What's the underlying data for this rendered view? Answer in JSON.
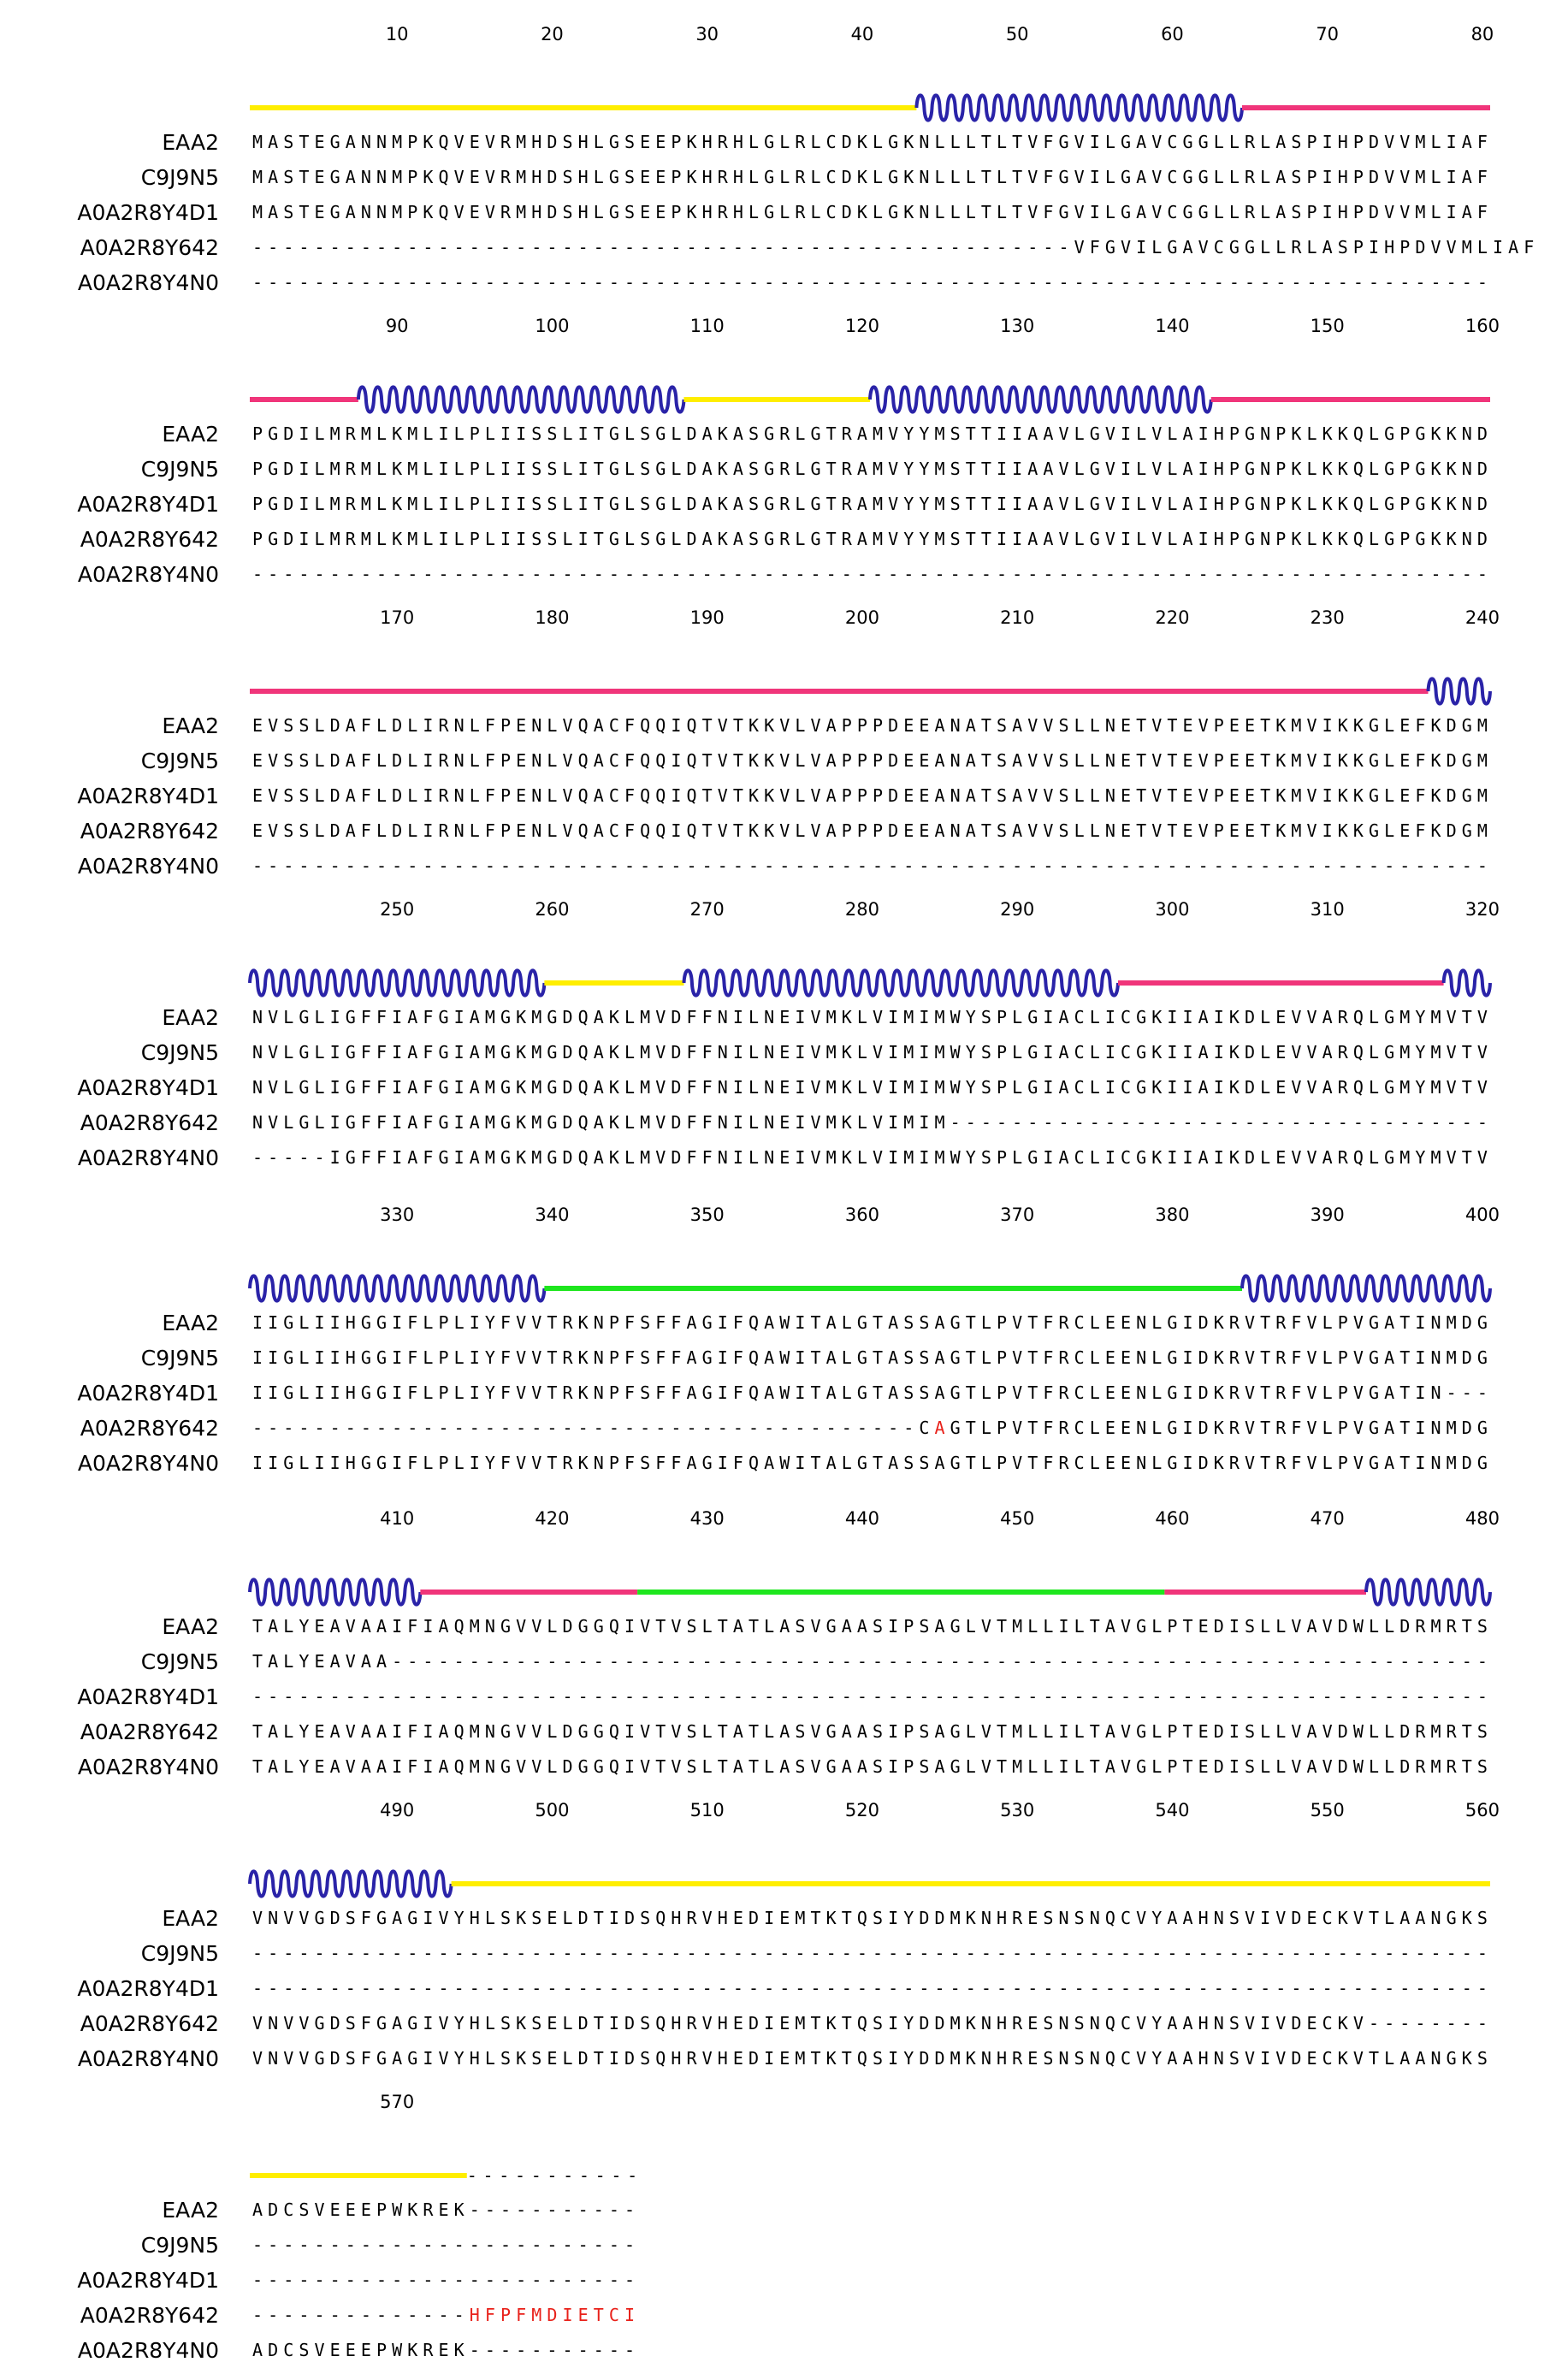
{
  "alignment": {
    "names": [
      "EAA2",
      "C9J9N5",
      "A0A2R8Y4D1",
      "A0A2R8Y642",
      "A0A2R8Y4N0"
    ],
    "colors": {
      "coil": "#ffee00",
      "strand": "#f0357a",
      "helix": "#2a23a8",
      "loop": "#1ee61e",
      "highlight": "#e8211a"
    },
    "blocks": [
      {
        "start": 1,
        "ticks": [
          "10",
          "20",
          "30",
          "40",
          "50",
          "60",
          "70",
          "80"
        ],
        "rows": [
          "MASTEGANNMPKQVEVRMHDSHLGSEEPKHRHLGLRLCDKLGKNLLLTLTVFGVILGAVCGGLLRLASPIHPDVVMLIAF",
          "MASTEGANNMPKQVEVRMHDSHLGSEEPKHRHLGLRLCDKLGKNLLLTLTVFGVILGAVCGGLLRLASPIHPDVVMLIAF",
          "MASTEGANNMPKQVEVRMHDSHLGSEEPKHRHLGLRLCDKLGKNLLLTLTVFGVILGAVCGGLLRLASPIHPDVVMLIAF",
          "-----------------------------------------------------VFGVILGAVCGGLLRLASPIHPDVVMLIAF",
          "--------------------------------------------------------------------------------"
        ],
        "segments": [
          [
            "coil",
            1,
            43
          ],
          [
            "helix",
            44,
            64
          ],
          [
            "strand",
            65,
            80
          ]
        ]
      },
      {
        "start": 81,
        "ticks": [
          "90",
          "100",
          "110",
          "120",
          "130",
          "140",
          "150",
          "160"
        ],
        "rows": [
          "PGDILMRMLKMLILPLIISSLITGLSGLDAKASGRLGTRAMVYYMSTTIIAAVLGVILVLAIHPGNPKLKKQLGPGKKND",
          "PGDILMRMLKMLILPLIISSLITGLSGLDAKASGRLGTRAMVYYMSTTIIAAVLGVILVLAIHPGNPKLKKQLGPGKKND",
          "PGDILMRMLKMLILPLIISSLITGLSGLDAKASGRLGTRAMVYYMSTTIIAAVLGVILVLAIHPGNPKLKKQLGPGKKND",
          "PGDILMRMLKMLILPLIISSLITGLSGLDAKASGRLGTRAMVYYMSTTIIAAVLGVILVLAIHPGNPKLKKQLGPGKKND",
          "--------------------------------------------------------------------------------"
        ],
        "segments": [
          [
            "strand",
            81,
            87
          ],
          [
            "helix",
            88,
            108
          ],
          [
            "coil",
            109,
            120
          ],
          [
            "helix",
            121,
            142
          ],
          [
            "strand",
            143,
            160
          ]
        ]
      },
      {
        "start": 161,
        "ticks": [
          "170",
          "180",
          "190",
          "200",
          "210",
          "220",
          "230",
          "240"
        ],
        "rows": [
          "EVSSLDAFLDLIRNLFPENLVQACFQQIQTVTKKVLVAPPPDEEANATSAVVSLLNETVTEVPEETKMVIKKGLEFKDGM",
          "EVSSLDAFLDLIRNLFPENLVQACFQQIQTVTKKVLVAPPPDEEANATSAVVSLLNETVTEVPEETKMVIKKGLEFKDGM",
          "EVSSLDAFLDLIRNLFPENLVQACFQQIQTVTKKVLVAPPPDEEANATSAVVSLLNETVTEVPEETKMVIKKGLEFKDGM",
          "EVSSLDAFLDLIRNLFPENLVQACFQQIQTVTKKVLVAPPPDEEANATSAVVSLLNETVTEVPEETKMVIKKGLEFKDGM",
          "--------------------------------------------------------------------------------"
        ],
        "segments": [
          [
            "strand",
            161,
            236
          ],
          [
            "helix",
            237,
            240
          ]
        ]
      },
      {
        "start": 241,
        "ticks": [
          "250",
          "260",
          "270",
          "280",
          "290",
          "300",
          "310",
          "320"
        ],
        "rows": [
          "NVLGLIGFFIAFGIAMGKMGDQAKLMVDFFNILNEIVMKLVIMIMWYSPLGIACLICGKIIAIKDLEVVARQLGMYMVTV",
          "NVLGLIGFFIAFGIAMGKMGDQAKLMVDFFNILNEIVMKLVIMIMWYSPLGIACLICGKIIAIKDLEVVARQLGMYMVTV",
          "NVLGLIGFFIAFGIAMGKMGDQAKLMVDFFNILNEIVMKLVIMIMWYSPLGIACLICGKIIAIKDLEVVARQLGMYMVTV",
          "NVLGLIGFFIAFGIAMGKMGDQAKLMVDFFNILNEIVMKLVIMIM-----------------------------------",
          "-----IGFFIAFGIAMGKMGDQAKLMVDFFNILNEIVMKLVIMIMWYSPLGIACLICGKIIAIKDLEVVARQLGMYMVTV"
        ],
        "segments": [
          [
            "helix",
            241,
            259
          ],
          [
            "coil",
            260,
            268
          ],
          [
            "helix",
            269,
            296
          ],
          [
            "strand",
            297,
            317
          ],
          [
            "helix",
            318,
            320
          ]
        ]
      },
      {
        "start": 321,
        "ticks": [
          "330",
          "340",
          "350",
          "360",
          "370",
          "380",
          "390",
          "400"
        ],
        "rows": [
          "IIGLIIHGGIFLPLIYFVVTRKNPFSFFAGIFQAWITALGTASSAGTLPVTFRCLEENLGIDKRVTRFVLPVGATINMDG",
          "IIGLIIHGGIFLPLIYFVVTRKNPFSFFAGIFQAWITALGTASSAGTLPVTFRCLEENLGIDKRVTRFVLPVGATINMDG",
          "IIGLIIHGGIFLPLIYFVVTRKNPFSFFAGIFQAWITALGTASSAGTLPVTFRCLEENLGIDKRVTRFVLPVGATIN---",
          "-------------------------------------------CAGTLPVTFRCLEENLGIDKRVTRFVLPVGATINMDG",
          "IIGLIIHGGIFLPLIYFVVTRKNPFSFFAGIFQAWITALGTASSAGTLPVTFRCLEENLGIDKRVTRFVLPVGATINMDG"
        ],
        "highlights": [
          {
            "row": 3,
            "col": 44
          }
        ],
        "segments": [
          [
            "helix",
            321,
            339
          ],
          [
            "loop",
            340,
            384
          ],
          [
            "helix",
            385,
            400
          ]
        ]
      },
      {
        "start": 401,
        "ticks": [
          "410",
          "420",
          "430",
          "440",
          "450",
          "460",
          "470",
          "480"
        ],
        "rows": [
          "TALYEAVAAIFIAQMNGVVLDGGQIVTVSLTATLASVGAASIPSAGLVTMLLILTAVGLPTEDISLLVAVDWLLDRMRTS",
          "TALYEAVAA-----------------------------------------------------------------------",
          "--------------------------------------------------------------------------------",
          "TALYEAVAAIFIAQMNGVVLDGGQIVTVSLTATLASVGAASIPSAGLVTMLLILTAVGLPTEDISLLVAVDWLLDRMRTS",
          "TALYEAVAAIFIAQMNGVVLDGGQIVTVSLTATLASVGAASIPSAGLVTMLLILTAVGLPTEDISLLVAVDWLLDRMRTS"
        ],
        "segments": [
          [
            "helix",
            401,
            411
          ],
          [
            "strand",
            412,
            425
          ],
          [
            "loop",
            426,
            459
          ],
          [
            "strand",
            460,
            472
          ],
          [
            "helix",
            473,
            480
          ]
        ]
      },
      {
        "start": 481,
        "ticks": [
          "490",
          "500",
          "510",
          "520",
          "530",
          "540",
          "550",
          "560"
        ],
        "rows": [
          "VNVVGDSFGAGIVYHLSKSELDTIDSQHRVHEDIEMTKTQSIYDDMKNHRESNSNQCVYAAHNSVIVDECKVTLAANGKS",
          "--------------------------------------------------------------------------------",
          "--------------------------------------------------------------------------------",
          "VNVVGDSFGAGIVYHLSKSELDTIDSQHRVHEDIEMTKTQSIYDDMKNHRESNSNQCVYAAHNSVIVDECKV--------",
          "VNVVGDSFGAGIVYHLSKSELDTIDSQHRVHEDIEMTKTQSIYDDMKNHRESNSNQCVYAAHNSVIVDECKVTLAANGKS"
        ],
        "segments": [
          [
            "helix",
            481,
            493
          ],
          [
            "coil",
            494,
            560
          ]
        ]
      },
      {
        "start": 561,
        "ticks": [
          "570"
        ],
        "rows": [
          "ADCSVEEEPWKREK-----------",
          "-------------------------",
          "-------------------------",
          "--------------HFPFMDIETCI",
          "ADCSVEEEPWKREK-----------"
        ],
        "highlights": [
          {
            "row": 3,
            "col": 14
          },
          {
            "row": 3,
            "col": 15
          },
          {
            "row": 3,
            "col": 16
          },
          {
            "row": 3,
            "col": 17
          },
          {
            "row": 3,
            "col": 18
          },
          {
            "row": 3,
            "col": 19
          },
          {
            "row": 3,
            "col": 20
          },
          {
            "row": 3,
            "col": 21
          },
          {
            "row": 3,
            "col": 22
          },
          {
            "row": 3,
            "col": 23
          },
          {
            "row": 3,
            "col": 24
          }
        ],
        "segments": [
          [
            "coil",
            561,
            574
          ]
        ],
        "gap_tail": "-----------"
      }
    ]
  }
}
